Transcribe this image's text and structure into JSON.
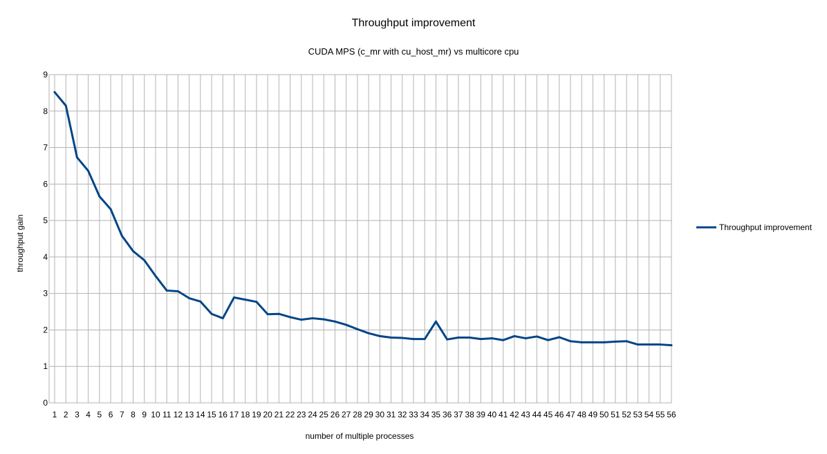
{
  "chart_data": {
    "type": "line",
    "title": "Throughput improvement",
    "subtitle": "CUDA MPS (c_mr with cu_host_mr) vs multicore cpu",
    "xlabel": "number of multiple processes",
    "ylabel": "throughput gain",
    "ylim": [
      0,
      9
    ],
    "yticks": [
      "0",
      "1",
      "2",
      "3",
      "4",
      "5",
      "6",
      "7",
      "8",
      "9"
    ],
    "categories": [
      "1",
      "2",
      "3",
      "4",
      "5",
      "6",
      "7",
      "8",
      "9",
      "10",
      "11",
      "12",
      "13",
      "14",
      "15",
      "16",
      "17",
      "18",
      "19",
      "20",
      "21",
      "22",
      "23",
      "24",
      "25",
      "26",
      "27",
      "28",
      "29",
      "30",
      "31",
      "32",
      "33",
      "34",
      "35",
      "36",
      "37",
      "38",
      "39",
      "40",
      "41",
      "42",
      "43",
      "44",
      "45",
      "46",
      "47",
      "48",
      "49",
      "50",
      "51",
      "52",
      "53",
      "54",
      "55",
      "56"
    ],
    "grid": true,
    "legend_position": "right",
    "series": [
      {
        "name": "Throughput improvement",
        "color": "#004586",
        "values": [
          8.52,
          8.15,
          6.73,
          6.36,
          5.66,
          5.31,
          4.58,
          4.16,
          3.91,
          3.48,
          3.08,
          3.06,
          2.87,
          2.78,
          2.44,
          2.32,
          2.89,
          2.83,
          2.77,
          2.43,
          2.44,
          2.35,
          2.28,
          2.32,
          2.29,
          2.23,
          2.14,
          2.02,
          1.91,
          1.83,
          1.79,
          1.78,
          1.75,
          1.75,
          2.23,
          1.74,
          1.79,
          1.79,
          1.75,
          1.77,
          1.72,
          1.83,
          1.77,
          1.82,
          1.72,
          1.8,
          1.69,
          1.66,
          1.66,
          1.66,
          1.68,
          1.69,
          1.6,
          1.6,
          1.6,
          1.58
        ]
      }
    ]
  }
}
